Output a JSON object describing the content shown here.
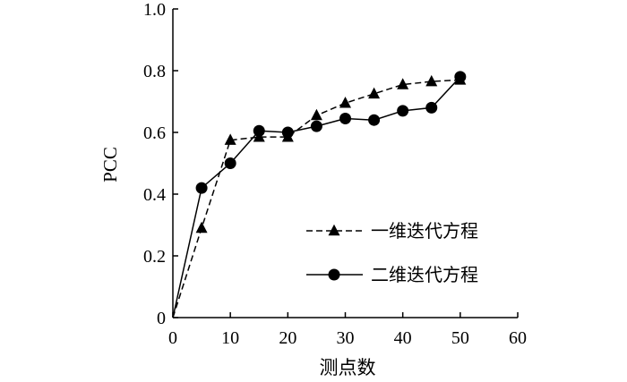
{
  "chart_data": {
    "type": "line",
    "xlabel": "测点数",
    "ylabel": "PCC",
    "xlim": [
      0,
      60
    ],
    "ylim": [
      0,
      1.0
    ],
    "x_ticks": [
      "0",
      "10",
      "20",
      "30",
      "40",
      "50",
      "60"
    ],
    "y_ticks": [
      "0",
      "0.2",
      "0.4",
      "0.6",
      "0.8",
      "1.0"
    ],
    "grid": false,
    "legend_position": "right-center",
    "series": [
      {
        "name": "一维迭代方程",
        "style": "dashed",
        "marker": "triangle",
        "color": "#000000",
        "points": [
          [
            0,
            0
          ],
          [
            5,
            0.29
          ],
          [
            10,
            0.575
          ],
          [
            15,
            0.585
          ],
          [
            20,
            0.585
          ],
          [
            25,
            0.655
          ],
          [
            30,
            0.695
          ],
          [
            35,
            0.725
          ],
          [
            40,
            0.755
          ],
          [
            45,
            0.765
          ],
          [
            50,
            0.77
          ]
        ]
      },
      {
        "name": "二维迭代方程",
        "style": "solid",
        "marker": "circle",
        "color": "#000000",
        "points": [
          [
            0,
            0
          ],
          [
            5,
            0.42
          ],
          [
            10,
            0.5
          ],
          [
            15,
            0.605
          ],
          [
            20,
            0.6
          ],
          [
            25,
            0.62
          ],
          [
            30,
            0.645
          ],
          [
            35,
            0.64
          ],
          [
            40,
            0.67
          ],
          [
            45,
            0.68
          ],
          [
            50,
            0.78
          ]
        ]
      }
    ]
  }
}
